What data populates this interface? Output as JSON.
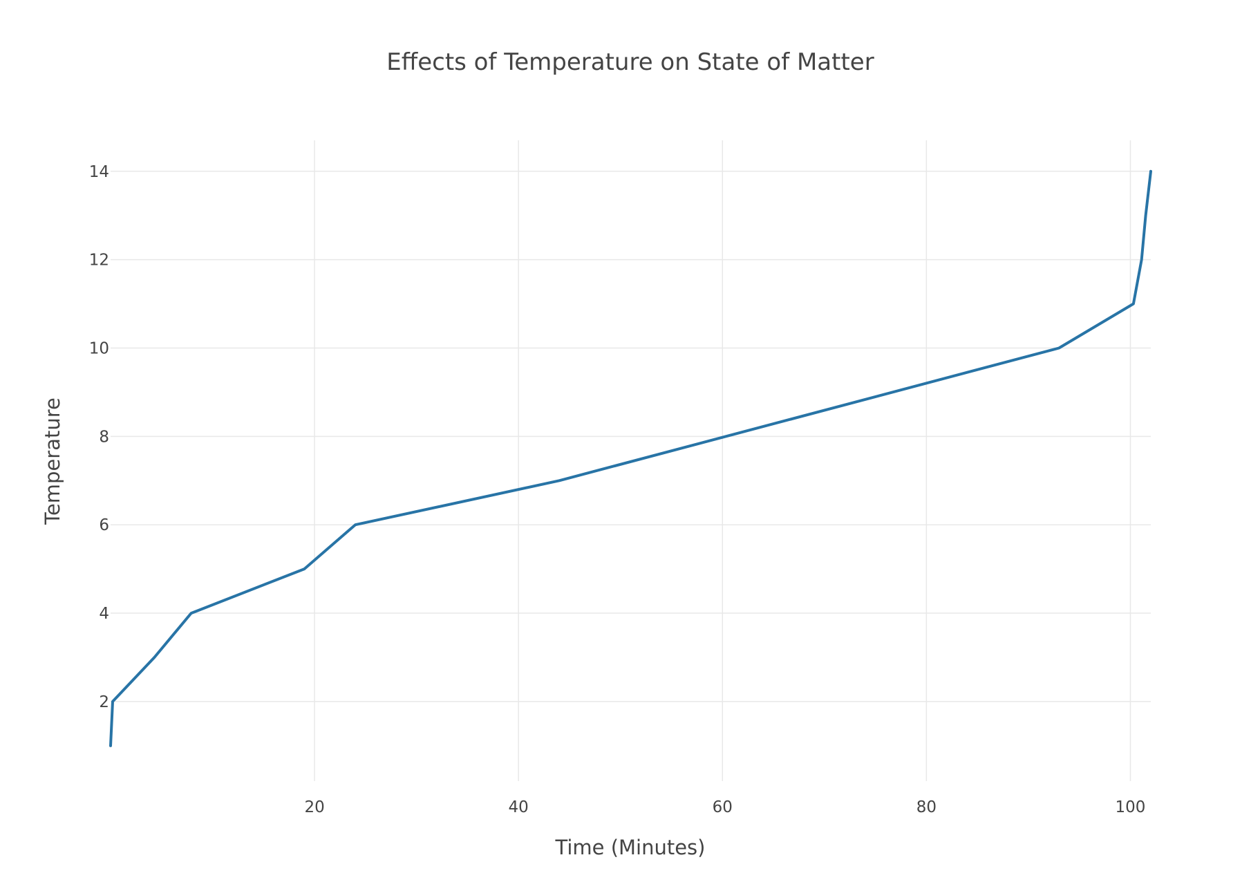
{
  "chart_data": {
    "type": "line",
    "title": "Effects of Temperature on State of Matter",
    "xlabel": "Time (Minutes)",
    "ylabel": "Temperature",
    "xlim": [
      0,
      102
    ],
    "ylim": [
      0.2,
      14.7
    ],
    "x_ticks": [
      20,
      40,
      60,
      80,
      100
    ],
    "y_ticks": [
      2,
      4,
      6,
      8,
      10,
      12,
      14
    ],
    "grid": true,
    "legend": "none",
    "line_color": "#2874a6",
    "series": [
      {
        "x": [
          0,
          0.2,
          4.3,
          7.9,
          19,
          24,
          44,
          93,
          100.3,
          101.1,
          101.5,
          102
        ],
        "y": [
          1,
          2,
          3,
          4,
          5,
          6,
          7,
          10,
          11,
          12,
          13,
          14
        ]
      }
    ]
  }
}
